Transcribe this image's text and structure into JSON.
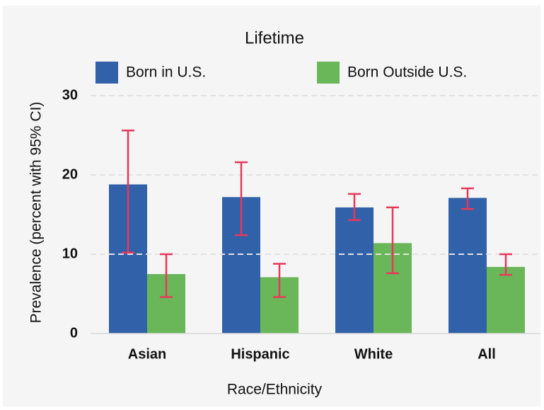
{
  "chart_data": {
    "type": "bar",
    "title": "Lifetime",
    "x_label": "Race/Ethnicity",
    "y_label": "Prevalence (percent with 95% CI)",
    "categories": [
      "Asian",
      "Hispanic",
      "White",
      "All"
    ],
    "series": [
      {
        "name": "Born in U.S.",
        "color": "#3161a9",
        "values": [
          18.8,
          17.2,
          15.9,
          17.1
        ],
        "ci_low": [
          10.2,
          12.4,
          14.3,
          15.7
        ],
        "ci_high": [
          25.6,
          21.6,
          17.6,
          18.3
        ]
      },
      {
        "name": "Born Outside U.S.",
        "color": "#6ab75a",
        "values": [
          7.5,
          7.1,
          11.4,
          8.4
        ],
        "ci_low": [
          4.6,
          4.6,
          7.6,
          7.4
        ],
        "ci_high": [
          10.0,
          8.8,
          15.9,
          10.0
        ]
      }
    ],
    "error_color": "#e8385a",
    "ylim": [
      0,
      30
    ],
    "yticks": [
      0,
      10,
      20,
      30
    ],
    "grid": true,
    "legend": "top"
  }
}
